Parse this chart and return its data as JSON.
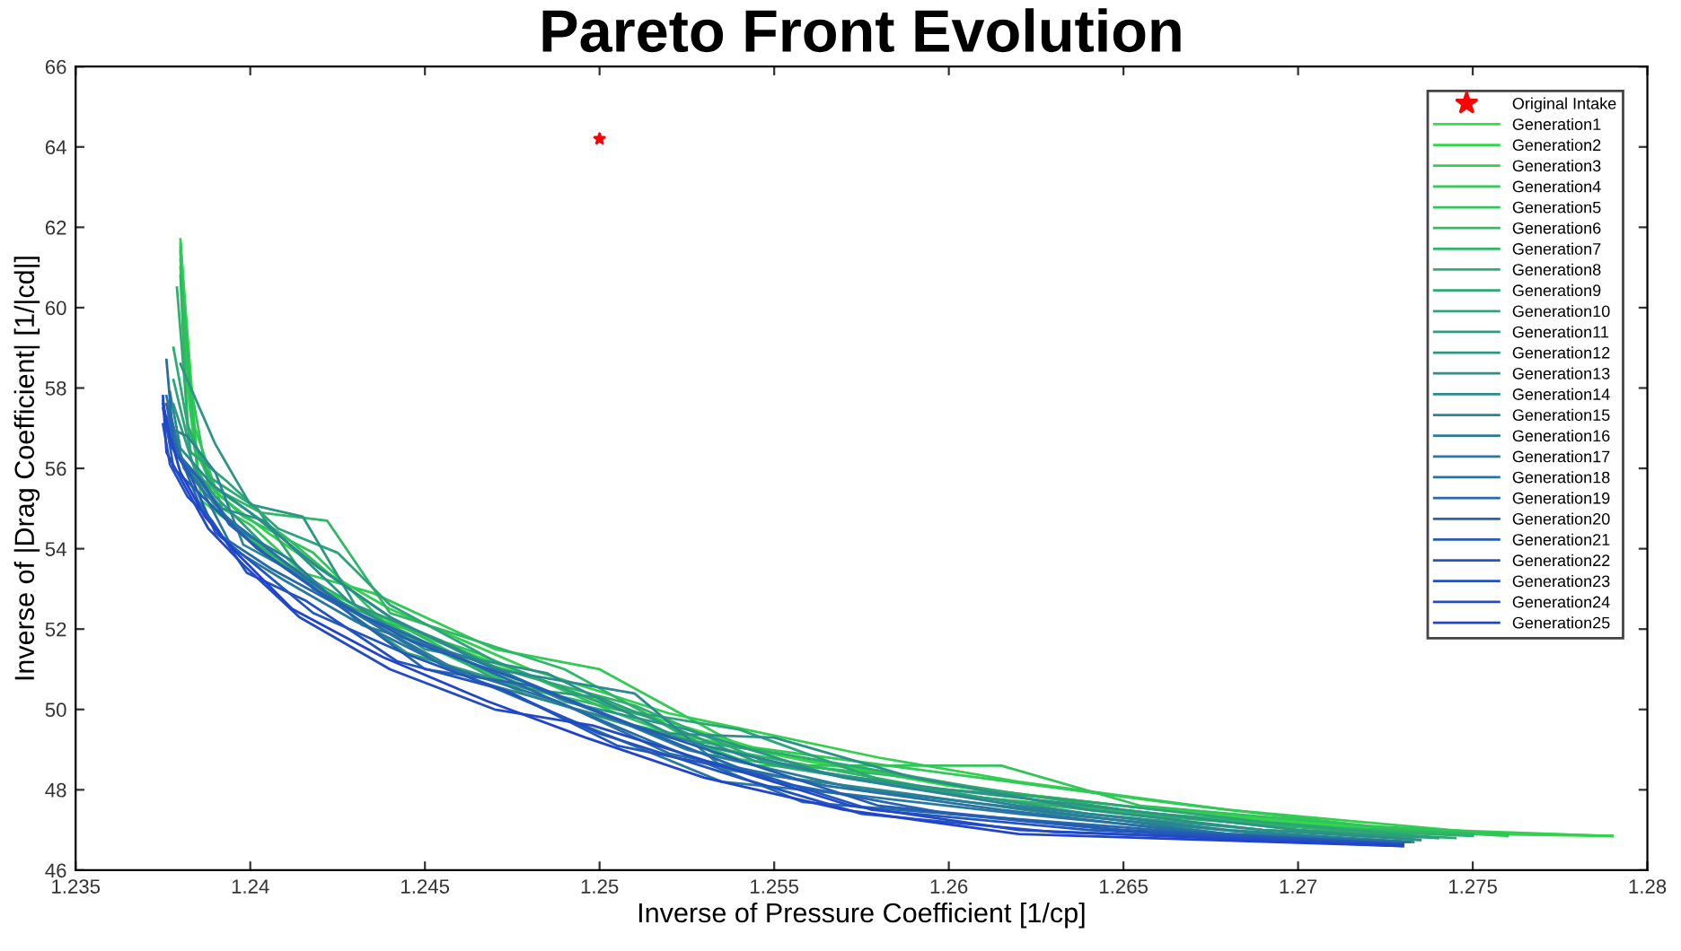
{
  "chart_data": {
    "type": "line",
    "title": "Pareto Front Evolution",
    "xlabel": "Inverse of Pressure Coefficient [1/cp]",
    "ylabel": "Inverse of |Drag Coefficient| [1/|cd|]",
    "xlim": [
      1.235,
      1.28
    ],
    "xticks": [
      1.235,
      1.24,
      1.245,
      1.25,
      1.255,
      1.26,
      1.265,
      1.27,
      1.275,
      1.28
    ],
    "ylim": [
      46,
      66
    ],
    "yticks": [
      46,
      48,
      50,
      52,
      54,
      56,
      58,
      60,
      62,
      64,
      66
    ],
    "legend": "top right",
    "grid": false,
    "line_style": "solid",
    "series": [
      {
        "name": "Original Intake",
        "type": "scatter",
        "marker": "star",
        "color": "#ff0000",
        "x": [
          1.25
        ],
        "values": [
          64.2
        ]
      },
      {
        "name": "Generation1",
        "color": "#33dd44",
        "x": [
          1.238,
          1.2381,
          1.2385,
          1.239,
          1.24,
          1.242,
          1.245,
          1.25,
          1.255,
          1.26,
          1.265,
          1.27,
          1.275,
          1.279
        ],
        "values": [
          61.6,
          60.5,
          56.0,
          55.0,
          54.2,
          53.0,
          51.8,
          50.2,
          48.9,
          48.1,
          47.6,
          47.2,
          46.9,
          46.85
        ]
      },
      {
        "name": "Generation2",
        "color": "#32d74a",
        "x": [
          1.238,
          1.2382,
          1.2386,
          1.2395,
          1.241,
          1.243,
          1.246,
          1.251,
          1.256,
          1.261,
          1.266,
          1.271,
          1.279
        ],
        "values": [
          61.4,
          58.0,
          55.2,
          54.6,
          53.6,
          52.4,
          51.2,
          49.6,
          48.7,
          48.0,
          47.5,
          47.1,
          46.85
        ]
      },
      {
        "name": "Generation3",
        "color": "#32d04f",
        "x": [
          1.238,
          1.2384,
          1.239,
          1.2405,
          1.242,
          1.244,
          1.248,
          1.252,
          1.258,
          1.262,
          1.268,
          1.275,
          1.279
        ],
        "values": [
          61.7,
          56.5,
          55.4,
          54.4,
          53.5,
          52.5,
          51.0,
          49.9,
          48.8,
          48.2,
          47.5,
          46.95,
          46.85
        ]
      },
      {
        "name": "Generation4",
        "color": "#31ca55",
        "x": [
          1.238,
          1.2383,
          1.2392,
          1.24,
          1.2415,
          1.2435,
          1.247,
          1.25,
          1.254,
          1.26,
          1.267,
          1.273,
          1.276
        ],
        "values": [
          61.2,
          57.3,
          55.0,
          54.6,
          53.4,
          52.9,
          51.5,
          51.0,
          49.1,
          48.4,
          47.6,
          47.0,
          46.85
        ]
      },
      {
        "name": "Generation5",
        "color": "#30c45b",
        "x": [
          1.238,
          1.2381,
          1.2388,
          1.2398,
          1.2418,
          1.2438,
          1.2465,
          1.2505,
          1.2545,
          1.2615,
          1.2655,
          1.272,
          1.276
        ],
        "values": [
          61.5,
          59.0,
          55.6,
          54.8,
          53.9,
          52.2,
          51.4,
          49.9,
          48.6,
          48.6,
          47.6,
          47.1,
          46.9
        ]
      },
      {
        "name": "Generation6",
        "color": "#2fbd60",
        "x": [
          1.238,
          1.2385,
          1.2395,
          1.241,
          1.2425,
          1.2445,
          1.2475,
          1.2515,
          1.2535,
          1.259,
          1.264,
          1.27,
          1.275
        ],
        "values": [
          61.0,
          55.8,
          55.2,
          54.3,
          53.2,
          52.0,
          50.6,
          49.8,
          48.8,
          48.3,
          47.5,
          47.1,
          46.9
        ]
      },
      {
        "name": "Generation7",
        "color": "#2fb766",
        "x": [
          1.238,
          1.2382,
          1.239,
          1.2403,
          1.2422,
          1.244,
          1.249,
          1.253,
          1.256,
          1.261,
          1.266,
          1.272,
          1.275
        ],
        "values": [
          60.8,
          57.0,
          55.5,
          54.9,
          54.7,
          52.4,
          51.0,
          49.1,
          48.6,
          47.8,
          47.4,
          47.0,
          46.9
        ]
      },
      {
        "name": "Generation8",
        "color": "#2eb06c",
        "x": [
          1.2379,
          1.2383,
          1.2391,
          1.24,
          1.242,
          1.245,
          1.248,
          1.251,
          1.255,
          1.26,
          1.265,
          1.271,
          1.275
        ],
        "values": [
          60.5,
          56.2,
          55.0,
          54.2,
          53.1,
          51.6,
          50.8,
          50.1,
          48.6,
          47.9,
          47.4,
          47.0,
          46.85
        ]
      },
      {
        "name": "Generation9",
        "color": "#2daa71",
        "x": [
          1.2378,
          1.2382,
          1.2388,
          1.2402,
          1.2418,
          1.2445,
          1.2478,
          1.252,
          1.2552,
          1.2605,
          1.265,
          1.27,
          1.2745
        ],
        "values": [
          59.0,
          57.1,
          55.8,
          55.0,
          53.0,
          51.9,
          50.4,
          49.3,
          48.9,
          48.1,
          47.5,
          47.0,
          46.8
        ]
      },
      {
        "name": "Generation10",
        "color": "#2da477",
        "x": [
          1.2378,
          1.2383,
          1.2393,
          1.2408,
          1.2425,
          1.244,
          1.247,
          1.2505,
          1.254,
          1.2585,
          1.263,
          1.269,
          1.274
        ],
        "values": [
          58.2,
          56.4,
          55.7,
          54.5,
          53.9,
          52.6,
          51.2,
          50.0,
          49.5,
          48.1,
          47.8,
          47.2,
          46.8
        ]
      },
      {
        "name": "Generation11",
        "color": "#2c9d7d",
        "x": [
          1.2378,
          1.2384,
          1.239,
          1.2405,
          1.242,
          1.2445,
          1.248,
          1.25,
          1.2545,
          1.2595,
          1.264,
          1.269,
          1.274
        ],
        "values": [
          57.6,
          56.0,
          55.3,
          54.0,
          52.9,
          51.4,
          50.5,
          50.3,
          48.7,
          48.0,
          47.4,
          47.0,
          46.8
        ]
      },
      {
        "name": "Generation12",
        "color": "#2b9782",
        "x": [
          1.238,
          1.239,
          1.24,
          1.2415,
          1.243,
          1.2455,
          1.249,
          1.2525,
          1.2565,
          1.26,
          1.264,
          1.27,
          1.2735
        ],
        "values": [
          58.6,
          56.6,
          55.1,
          54.8,
          52.6,
          51.7,
          50.2,
          49.5,
          48.4,
          48.0,
          47.6,
          47.0,
          46.75
        ]
      },
      {
        "name": "Generation13",
        "color": "#2b9188",
        "x": [
          1.2377,
          1.2381,
          1.2392,
          1.2404,
          1.2428,
          1.245,
          1.2485,
          1.252,
          1.255,
          1.259,
          1.264,
          1.269,
          1.2735
        ],
        "values": [
          57.2,
          56.1,
          55.0,
          54.7,
          52.7,
          51.5,
          50.9,
          49.4,
          49.3,
          48.3,
          47.5,
          47.0,
          46.75
        ]
      },
      {
        "name": "Generation14",
        "color": "#2a8a8e",
        "x": [
          1.2377,
          1.238,
          1.2389,
          1.24,
          1.242,
          1.244,
          1.247,
          1.251,
          1.2536,
          1.258,
          1.263,
          1.269,
          1.2733
        ],
        "values": [
          57.9,
          56.5,
          55.6,
          54.9,
          53.5,
          52.3,
          51.0,
          50.4,
          48.5,
          48.0,
          47.4,
          46.9,
          46.7
        ]
      },
      {
        "name": "Generation15",
        "color": "#298493",
        "x": [
          1.2377,
          1.2382,
          1.239,
          1.2398,
          1.2415,
          1.2438,
          1.2465,
          1.2498,
          1.253,
          1.257,
          1.262,
          1.268,
          1.2732
        ],
        "values": [
          57.0,
          56.8,
          55.9,
          54.1,
          53.3,
          52.0,
          50.7,
          49.9,
          49.1,
          48.3,
          47.6,
          47.0,
          46.7
        ]
      },
      {
        "name": "Generation16",
        "color": "#297d99",
        "x": [
          1.2377,
          1.2381,
          1.2387,
          1.2396,
          1.2412,
          1.2432,
          1.2462,
          1.2495,
          1.2525,
          1.2575,
          1.2625,
          1.268,
          1.2732
        ],
        "values": [
          57.4,
          56.0,
          55.4,
          54.5,
          53.7,
          52.1,
          51.3,
          50.1,
          49.0,
          48.0,
          47.5,
          46.9,
          46.7
        ]
      },
      {
        "name": "Generation17",
        "color": "#28779f",
        "x": [
          1.2376,
          1.238,
          1.2386,
          1.2395,
          1.241,
          1.243,
          1.246,
          1.249,
          1.2535,
          1.257,
          1.262,
          1.268,
          1.2731
        ],
        "values": [
          57.8,
          56.2,
          55.5,
          54.0,
          53.2,
          52.2,
          50.9,
          49.8,
          48.2,
          47.9,
          47.4,
          46.9,
          46.7
        ]
      },
      {
        "name": "Generation18",
        "color": "#2771a4",
        "x": [
          1.2376,
          1.2379,
          1.2384,
          1.2393,
          1.2408,
          1.2428,
          1.2455,
          1.2488,
          1.252,
          1.2565,
          1.2615,
          1.2675,
          1.273
        ],
        "values": [
          57.3,
          56.4,
          55.9,
          54.8,
          53.8,
          52.5,
          51.1,
          50.2,
          48.9,
          48.1,
          47.5,
          46.9,
          46.7
        ]
      },
      {
        "name": "Generation19",
        "color": "#266aaa",
        "x": [
          1.2376,
          1.2378,
          1.2385,
          1.2392,
          1.2406,
          1.2425,
          1.2452,
          1.2485,
          1.2515,
          1.2558,
          1.26,
          1.266,
          1.273
        ],
        "values": [
          58.7,
          56.7,
          55.2,
          54.3,
          53.5,
          52.6,
          51.6,
          50.3,
          49.2,
          47.7,
          47.4,
          47.0,
          46.65
        ]
      },
      {
        "name": "Generation20",
        "color": "#2664b0",
        "x": [
          1.2376,
          1.2379,
          1.2386,
          1.2394,
          1.2404,
          1.2422,
          1.245,
          1.248,
          1.2512,
          1.255,
          1.26,
          1.266,
          1.273
        ],
        "values": [
          57.6,
          56.3,
          55.7,
          54.6,
          53.9,
          52.8,
          51.0,
          50.6,
          49.5,
          48.2,
          47.4,
          46.9,
          46.65
        ]
      },
      {
        "name": "Generation21",
        "color": "#255db5",
        "x": [
          1.2375,
          1.2378,
          1.2384,
          1.2391,
          1.2402,
          1.242,
          1.2446,
          1.2478,
          1.251,
          1.2548,
          1.258,
          1.265,
          1.273
        ],
        "values": [
          57.7,
          56.0,
          55.5,
          54.9,
          54.0,
          52.9,
          51.7,
          50.7,
          49.6,
          48.5,
          47.6,
          47.0,
          46.65
        ]
      },
      {
        "name": "Generation22",
        "color": "#2457bb",
        "x": [
          1.2375,
          1.2377,
          1.2383,
          1.239,
          1.24,
          1.2418,
          1.2444,
          1.2475,
          1.2505,
          1.2545,
          1.2578,
          1.264,
          1.273
        ],
        "values": [
          57.5,
          56.6,
          55.8,
          54.4,
          53.7,
          52.4,
          51.4,
          50.4,
          49.1,
          48.4,
          47.5,
          47.0,
          46.65
        ]
      },
      {
        "name": "Generation23",
        "color": "#2451c1",
        "x": [
          1.2375,
          1.2377,
          1.2382,
          1.2389,
          1.2399,
          1.2416,
          1.2442,
          1.2472,
          1.25,
          1.254,
          1.2575,
          1.263,
          1.273
        ],
        "values": [
          57.1,
          56.1,
          55.3,
          54.7,
          53.4,
          52.7,
          51.2,
          50.5,
          49.4,
          48.3,
          47.4,
          46.95,
          46.65
        ]
      },
      {
        "name": "Generation24",
        "color": "#234ac6",
        "x": [
          1.2375,
          1.2376,
          1.2381,
          1.2388,
          1.2398,
          1.2414,
          1.244,
          1.247,
          1.2498,
          1.2535,
          1.2572,
          1.262,
          1.273
        ],
        "values": [
          57.8,
          56.4,
          55.6,
          54.5,
          53.6,
          52.3,
          51.0,
          50.0,
          49.6,
          48.6,
          47.6,
          47.0,
          46.6
        ]
      },
      {
        "name": "Generation25",
        "color": "#2244cc",
        "x": [
          1.2375,
          1.2377,
          1.238,
          1.2387,
          1.2396,
          1.2412,
          1.2438,
          1.2468,
          1.2496,
          1.253,
          1.257,
          1.262,
          1.273
        ],
        "values": [
          57.6,
          56.8,
          55.9,
          54.8,
          53.9,
          52.5,
          51.3,
          50.2,
          49.3,
          48.3,
          47.5,
          46.9,
          46.6
        ]
      }
    ]
  }
}
